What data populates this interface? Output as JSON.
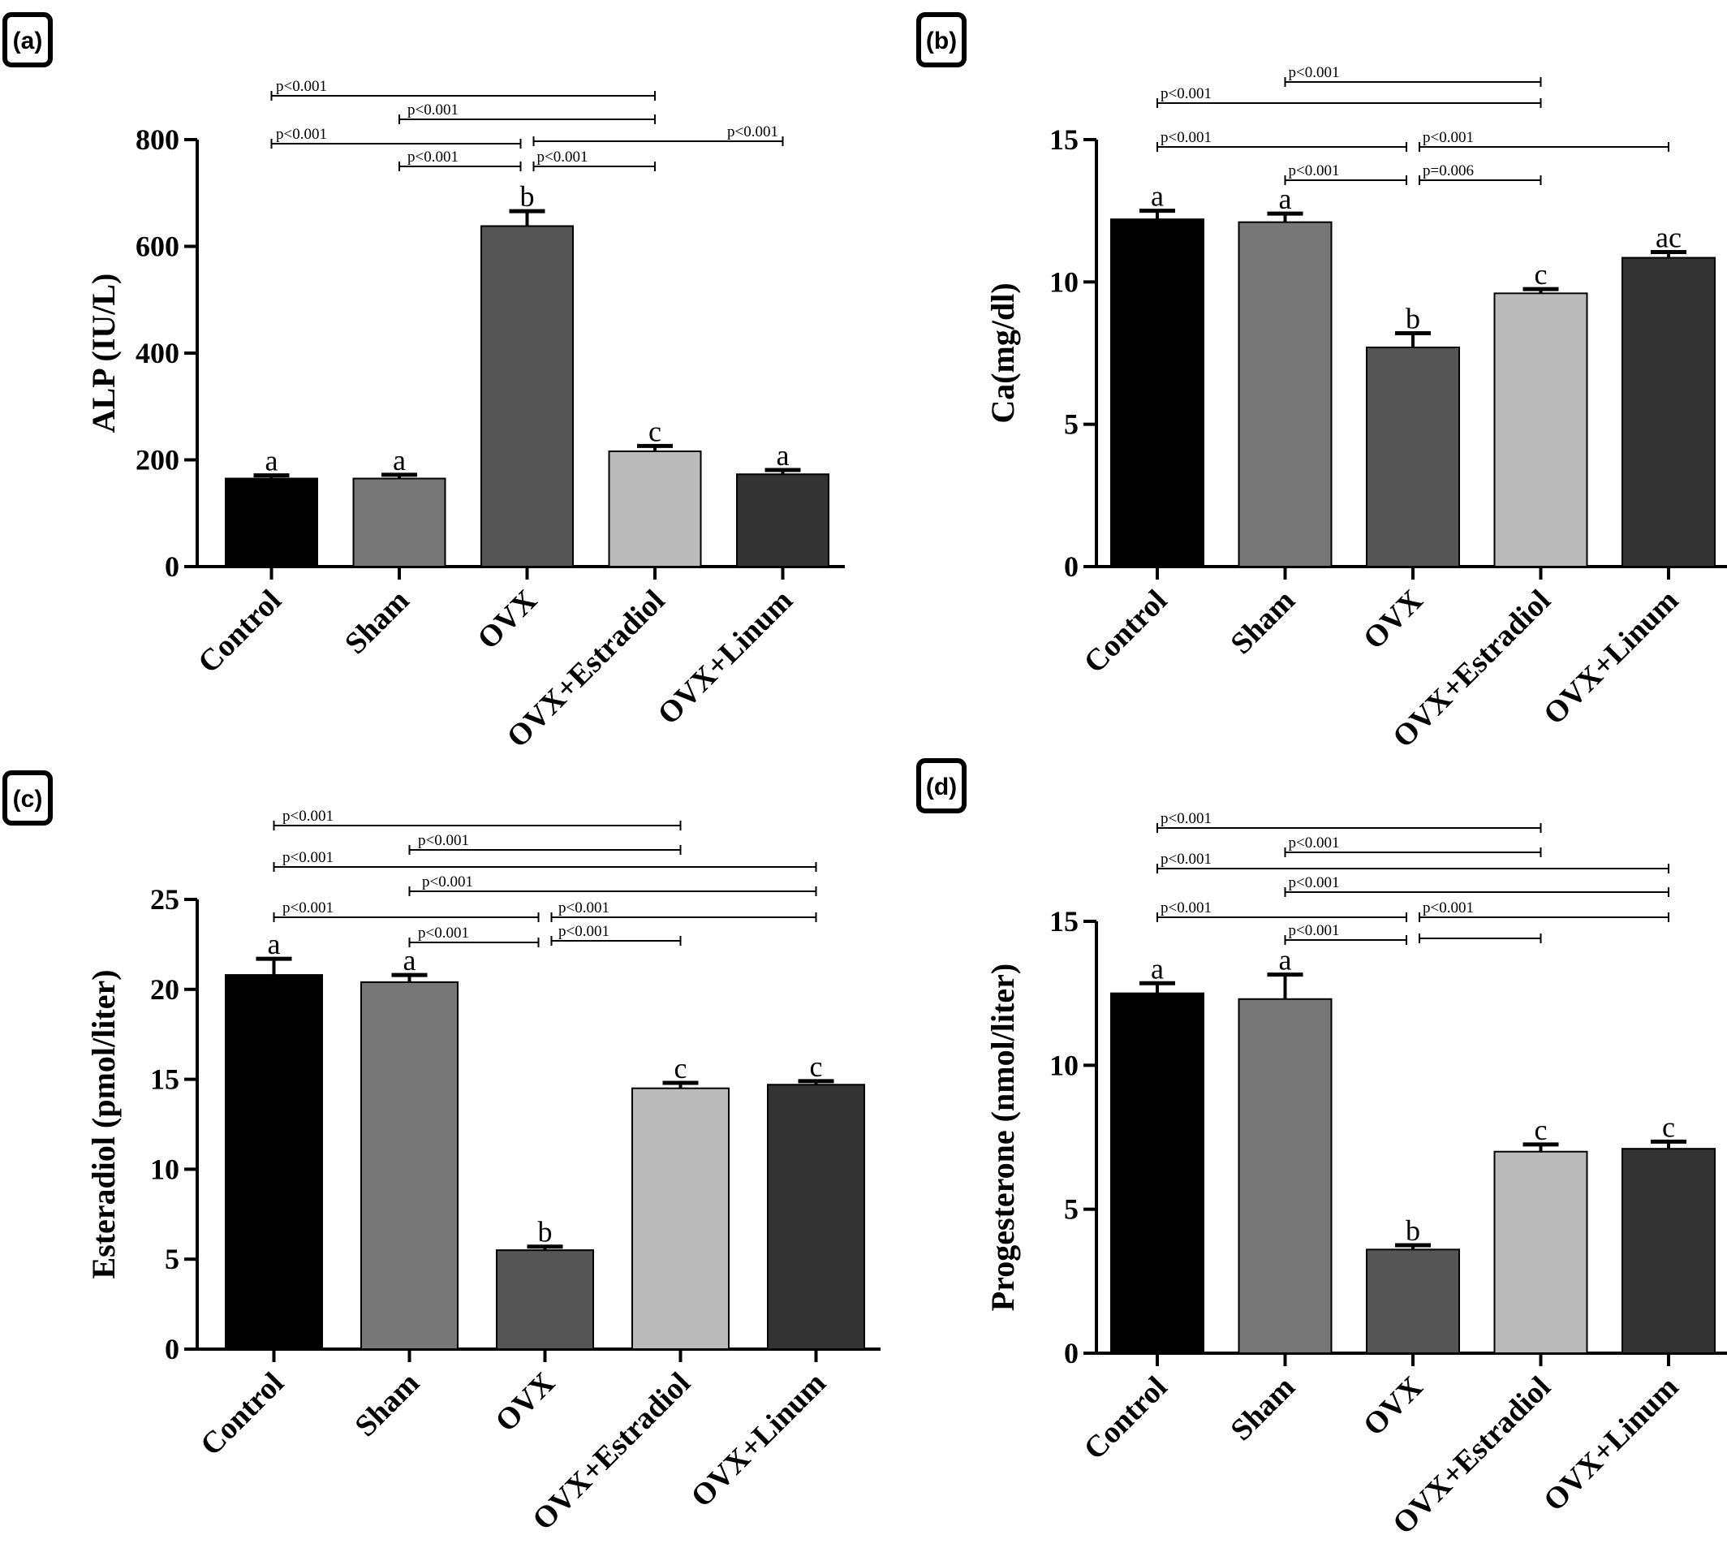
{
  "chart_data": [
    {
      "panel": "(a)",
      "type": "bar",
      "categories": [
        "Control",
        "Sham",
        "OVX",
        "OVX+Estradiol",
        "OVX+Linum"
      ],
      "values": [
        165,
        165,
        638,
        216,
        173
      ],
      "errors": [
        6,
        7,
        28,
        10,
        8
      ],
      "letters": [
        "a",
        "a",
        "b",
        "c",
        "a"
      ],
      "colors": [
        "#000000",
        "#777777",
        "#555555",
        "#bbbbbb",
        "#333333"
      ],
      "ylabel": "ALP (IU/L)",
      "ylim": [
        0,
        800
      ],
      "yticks": [
        0,
        200,
        400,
        600,
        800
      ],
      "comparisons": [
        {
          "from": 0,
          "to": 3,
          "label": "p<0.001"
        },
        {
          "from": 1,
          "to": 3,
          "label": "p<0.001"
        },
        {
          "from": 0,
          "to": 2,
          "label": "p<0.001"
        },
        {
          "from": 2,
          "to": 4,
          "label": "p<0.001"
        },
        {
          "from": 1,
          "to": 2,
          "label": "p<0.001"
        },
        {
          "from": 2,
          "to": 3,
          "label": "p<0.001"
        }
      ]
    },
    {
      "panel": "(b)",
      "type": "bar",
      "categories": [
        "Control",
        "Sham",
        "OVX",
        "OVX+Estradiol",
        "OVX+Linum"
      ],
      "values": [
        12.2,
        12.1,
        7.7,
        9.6,
        10.85
      ],
      "errors": [
        0.3,
        0.3,
        0.5,
        0.15,
        0.2
      ],
      "letters": [
        "a",
        "a",
        "b",
        "c",
        "ac"
      ],
      "colors": [
        "#000000",
        "#777777",
        "#555555",
        "#bbbbbb",
        "#333333"
      ],
      "ylabel": "Ca(mg/dl)",
      "ylim": [
        0,
        15
      ],
      "yticks": [
        0,
        5,
        10,
        15
      ],
      "comparisons": [
        {
          "from": 1,
          "to": 3,
          "label": "p<0.001"
        },
        {
          "from": 0,
          "to": 3,
          "label": "p<0.001"
        },
        {
          "from": 0,
          "to": 2,
          "label": "p<0.001"
        },
        {
          "from": 2,
          "to": 4,
          "label": "p<0.001"
        },
        {
          "from": 1,
          "to": 2,
          "label": "p<0.001"
        },
        {
          "from": 2,
          "to": 3,
          "label": "p=0.006"
        }
      ]
    },
    {
      "panel": "(c)",
      "type": "bar",
      "categories": [
        "Control",
        "Sham",
        "OVX",
        "OVX+Estradiol",
        "OVX+Linum"
      ],
      "values": [
        20.8,
        20.4,
        5.5,
        14.5,
        14.7
      ],
      "errors": [
        0.9,
        0.4,
        0.2,
        0.3,
        0.2
      ],
      "letters": [
        "a",
        "a",
        "b",
        "c",
        "c"
      ],
      "colors": [
        "#000000",
        "#777777",
        "#555555",
        "#bbbbbb",
        "#333333"
      ],
      "ylabel": "Esteradiol (pmol/liter)",
      "ylim": [
        0,
        25
      ],
      "yticks": [
        0,
        5,
        10,
        15,
        20,
        25
      ],
      "comparisons": [
        {
          "from": 0,
          "to": 3,
          "label": "p<0.001"
        },
        {
          "from": 1,
          "to": 3,
          "label": "p<0.001"
        },
        {
          "from": 0,
          "to": 4,
          "label": "p<0.001"
        },
        {
          "from": 1,
          "to": 4,
          "label": "p<0.001"
        },
        {
          "from": 0,
          "to": 2,
          "label": "p<0.001"
        },
        {
          "from": 2,
          "to": 4,
          "label": "p<0.001"
        },
        {
          "from": 1,
          "to": 2,
          "label": "p<0.001"
        },
        {
          "from": 2,
          "to": 3,
          "label": "p<0.001"
        }
      ]
    },
    {
      "panel": "(d)",
      "type": "bar",
      "categories": [
        "Control",
        "Sham",
        "OVX",
        "OVX+Estradiol",
        "OVX+Linum"
      ],
      "values": [
        12.5,
        12.3,
        3.6,
        7.0,
        7.1
      ],
      "errors": [
        0.35,
        0.85,
        0.15,
        0.25,
        0.25
      ],
      "letters": [
        "a",
        "a",
        "b",
        "c",
        "c"
      ],
      "colors": [
        "#000000",
        "#777777",
        "#555555",
        "#bbbbbb",
        "#333333"
      ],
      "ylabel": "Progesterone (nmol/liter)",
      "ylim": [
        0,
        15
      ],
      "yticks": [
        0,
        5,
        10,
        15
      ],
      "comparisons": [
        {
          "from": 0,
          "to": 3,
          "label": "p<0.001"
        },
        {
          "from": 1,
          "to": 3,
          "label": "p<0.001"
        },
        {
          "from": 0,
          "to": 4,
          "label": "p<0.001"
        },
        {
          "from": 1,
          "to": 4,
          "label": "p<0.001"
        },
        {
          "from": 0,
          "to": 2,
          "label": "p<0.001"
        },
        {
          "from": 2,
          "to": 4,
          "label": "p<0.001"
        },
        {
          "from": 1,
          "to": 2,
          "label": "p<0.001"
        },
        {
          "from": 2,
          "to": 3,
          "label": ""
        }
      ]
    }
  ]
}
